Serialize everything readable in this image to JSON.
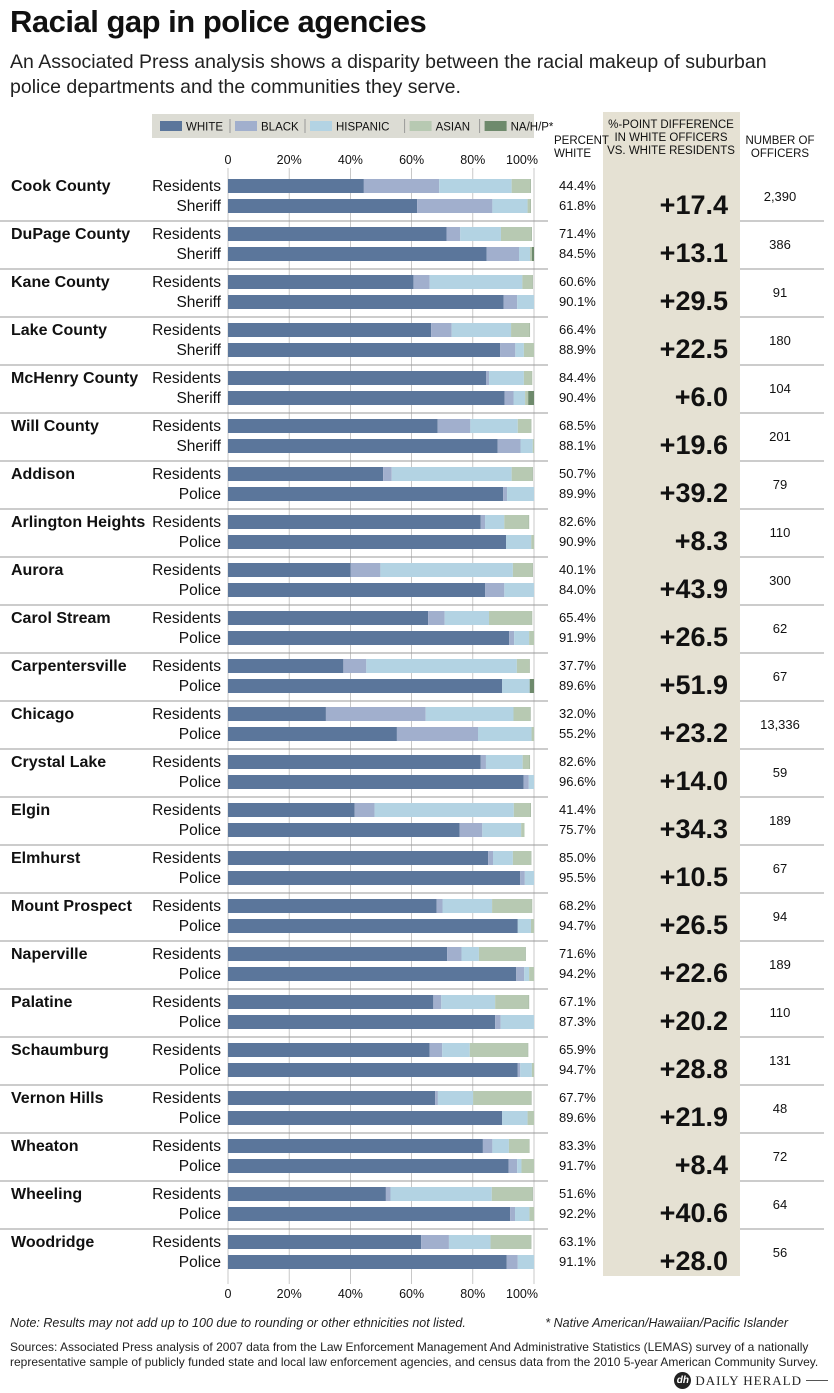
{
  "header": {
    "title": "Racial gap in police agencies",
    "subtitle": "An Associated Press analysis shows a disparity between the racial makeup of suburban police departments and the communities they serve."
  },
  "chart_data": {
    "type": "bar",
    "orientation": "horizontal",
    "stacked": true,
    "xlim": [
      0,
      100
    ],
    "x_ticks": [
      "0",
      "20%",
      "40%",
      "60%",
      "80%",
      "100%"
    ],
    "legend": {
      "placement": "top",
      "entries": [
        {
          "name": "WHITE",
          "color": "#5b769b"
        },
        {
          "name": "BLACK",
          "color": "#a1afcd"
        },
        {
          "name": "HISPANIC",
          "color": "#b3d3e3"
        },
        {
          "name": "ASIAN",
          "color": "#b7c9b2"
        },
        {
          "name": "NA/H/P*",
          "color": "#6e8a6c"
        }
      ]
    },
    "column_headers": {
      "percent_white": [
        "PERCENT",
        "WHITE"
      ],
      "difference": [
        "%-POINT DIFFERENCE",
        "IN WHITE OFFICERS",
        "VS. WHITE RESIDENTS"
      ],
      "officers": [
        "NUMBER OF",
        "OFFICERS"
      ]
    },
    "rows": [
      {
        "name": "Cook County",
        "res_label": "Residents",
        "ag_label": "Sheriff",
        "residents": [
          44.4,
          24.6,
          23.7,
          6.2,
          0.1
        ],
        "agency": [
          61.8,
          24.6,
          11.5,
          1.0,
          0.1
        ],
        "res_pct": "44.4%",
        "ag_pct": "61.8%",
        "diff": "+17.4",
        "officers": "2,390"
      },
      {
        "name": "DuPage County",
        "res_label": "Residents",
        "ag_label": "Sheriff",
        "residents": [
          71.4,
          4.5,
          13.3,
          10.0,
          0.1
        ],
        "agency": [
          84.5,
          10.6,
          3.6,
          0.6,
          0.7
        ],
        "res_pct": "71.4%",
        "ag_pct": "84.5%",
        "diff": "+13.1",
        "officers": "386"
      },
      {
        "name": "Kane County",
        "res_label": "Residents",
        "ag_label": "Sheriff",
        "residents": [
          60.6,
          5.3,
          30.3,
          3.3,
          0.1
        ],
        "agency": [
          90.1,
          4.4,
          5.5,
          0,
          0
        ],
        "res_pct": "60.6%",
        "ag_pct": "90.1%",
        "diff": "+29.5",
        "officers": "91"
      },
      {
        "name": "Lake County",
        "res_label": "Residents",
        "ag_label": "Sheriff",
        "residents": [
          66.4,
          6.7,
          19.4,
          6.1,
          0.1
        ],
        "agency": [
          88.9,
          5.0,
          2.8,
          3.3,
          0
        ],
        "res_pct": "66.4%",
        "ag_pct": "88.9%",
        "diff": "+22.5",
        "officers": "180"
      },
      {
        "name": "McHenry County",
        "res_label": "Residents",
        "ag_label": "Sheriff",
        "residents": [
          84.4,
          0.9,
          11.4,
          2.6,
          0.1
        ],
        "agency": [
          90.4,
          2.9,
          3.8,
          1.0,
          1.9
        ],
        "res_pct": "84.4%",
        "ag_pct": "90.4%",
        "diff": "+6.0",
        "officers": "104"
      },
      {
        "name": "Will County",
        "res_label": "Residents",
        "ag_label": "Sheriff",
        "residents": [
          68.5,
          10.7,
          15.5,
          4.3,
          0.1
        ],
        "agency": [
          88.1,
          7.5,
          4.0,
          0.4,
          0
        ],
        "res_pct": "68.5%",
        "ag_pct": "88.1%",
        "diff": "+19.6",
        "officers": "201"
      },
      {
        "name": "Addison",
        "res_label": "Residents",
        "ag_label": "Police",
        "residents": [
          50.7,
          2.8,
          39.2,
          6.8,
          0.1
        ],
        "agency": [
          89.9,
          1.3,
          8.8,
          0,
          0
        ],
        "res_pct": "50.7%",
        "ag_pct": "89.9%",
        "diff": "+39.2",
        "officers": "79"
      },
      {
        "name": "Arlington Heights",
        "res_label": "Residents",
        "ag_label": "Police",
        "residents": [
          82.6,
          1.4,
          6.3,
          8.0,
          0.1
        ],
        "agency": [
          90.9,
          0,
          8.2,
          0.9,
          0
        ],
        "res_pct": "82.6%",
        "ag_pct": "90.9%",
        "diff": "+8.3",
        "officers": "110"
      },
      {
        "name": "Aurora",
        "res_label": "Residents",
        "ag_label": "Police",
        "residents": [
          40.1,
          9.7,
          43.3,
          6.4,
          0.1
        ],
        "agency": [
          84.0,
          6.3,
          9.7,
          0,
          0
        ],
        "res_pct": "40.1%",
        "ag_pct": "84.0%",
        "diff": "+43.9",
        "officers": "300"
      },
      {
        "name": "Carol Stream",
        "res_label": "Residents",
        "ag_label": "Police",
        "residents": [
          65.4,
          5.4,
          14.5,
          14.0,
          0.1
        ],
        "agency": [
          91.9,
          1.6,
          4.9,
          1.6,
          0
        ],
        "res_pct": "65.4%",
        "ag_pct": "91.9%",
        "diff": "+26.5",
        "officers": "62"
      },
      {
        "name": "Carpentersville",
        "res_label": "Residents",
        "ag_label": "Police",
        "residents": [
          37.7,
          7.5,
          49.2,
          4.1,
          0.1
        ],
        "agency": [
          89.6,
          0,
          9.0,
          0,
          1.4
        ],
        "res_pct": "37.7%",
        "ag_pct": "89.6%",
        "diff": "+51.9",
        "officers": "67"
      },
      {
        "name": "Chicago",
        "res_label": "Residents",
        "ag_label": "Police",
        "residents": [
          32.0,
          32.6,
          28.7,
          5.5,
          0.1
        ],
        "agency": [
          55.2,
          26.5,
          17.5,
          0.8,
          0
        ],
        "res_pct": "32.0%",
        "ag_pct": "55.2%",
        "diff": "+23.2",
        "officers": "13,336"
      },
      {
        "name": "Crystal Lake",
        "res_label": "Residents",
        "ag_label": "Police",
        "residents": [
          82.6,
          1.7,
          12.0,
          2.3,
          0.1
        ],
        "agency": [
          96.6,
          1.7,
          1.7,
          0,
          0
        ],
        "res_pct": "82.6%",
        "ag_pct": "96.6%",
        "diff": "+14.0",
        "officers": "59"
      },
      {
        "name": "Elgin",
        "res_label": "Residents",
        "ag_label": "Police",
        "residents": [
          41.4,
          6.5,
          45.5,
          5.5,
          0.1
        ],
        "agency": [
          75.7,
          7.4,
          12.7,
          1.1,
          0
        ],
        "res_pct": "41.4%",
        "ag_pct": "75.7%",
        "diff": "+34.3",
        "officers": "189"
      },
      {
        "name": "Elmhurst",
        "res_label": "Residents",
        "ag_label": "Police",
        "residents": [
          85.0,
          1.6,
          6.5,
          5.9,
          0.1
        ],
        "agency": [
          95.5,
          1.5,
          3.0,
          0,
          0
        ],
        "res_pct": "85.0%",
        "ag_pct": "95.5%",
        "diff": "+10.5",
        "officers": "67"
      },
      {
        "name": "Mount Prospect",
        "res_label": "Residents",
        "ag_label": "Police",
        "residents": [
          68.2,
          1.9,
          16.2,
          13.0,
          0.1
        ],
        "agency": [
          94.7,
          0,
          4.3,
          1.0,
          0
        ],
        "res_pct": "68.2%",
        "ag_pct": "94.7%",
        "diff": "+26.5",
        "officers": "94"
      },
      {
        "name": "Naperville",
        "res_label": "Residents",
        "ag_label": "Police",
        "residents": [
          71.6,
          4.7,
          5.7,
          15.2,
          0.1
        ],
        "agency": [
          94.2,
          2.6,
          1.6,
          1.6,
          0
        ],
        "res_pct": "71.6%",
        "ag_pct": "94.2%",
        "diff": "+22.6",
        "officers": "189"
      },
      {
        "name": "Palatine",
        "res_label": "Residents",
        "ag_label": "Police",
        "residents": [
          67.1,
          2.6,
          17.6,
          11.0,
          0.1
        ],
        "agency": [
          87.3,
          1.8,
          10.9,
          0,
          0
        ],
        "res_pct": "67.1%",
        "ag_pct": "87.3%",
        "diff": "+20.2",
        "officers": "110"
      },
      {
        "name": "Schaumburg",
        "res_label": "Residents",
        "ag_label": "Police",
        "residents": [
          65.9,
          4.1,
          9.0,
          19.0,
          0.1
        ],
        "agency": [
          94.7,
          0.8,
          3.8,
          0.7,
          0
        ],
        "res_pct": "65.9%",
        "ag_pct": "94.7%",
        "diff": "+28.8",
        "officers": "131"
      },
      {
        "name": "Vernon Hills",
        "res_label": "Residents",
        "ag_label": "Police",
        "residents": [
          67.7,
          0.9,
          11.5,
          19.0,
          0.1
        ],
        "agency": [
          89.6,
          0,
          8.3,
          2.1,
          0
        ],
        "res_pct": "67.7%",
        "ag_pct": "89.6%",
        "diff": "+21.9",
        "officers": "48"
      },
      {
        "name": "Wheaton",
        "res_label": "Residents",
        "ag_label": "Police",
        "residents": [
          83.3,
          3.1,
          5.4,
          6.6,
          0.1
        ],
        "agency": [
          91.7,
          2.8,
          1.4,
          4.1,
          0
        ],
        "res_pct": "83.3%",
        "ag_pct": "91.7%",
        "diff": "+8.4",
        "officers": "72"
      },
      {
        "name": "Wheeling",
        "res_label": "Residents",
        "ag_label": "Police",
        "residents": [
          51.6,
          1.5,
          33.1,
          13.3,
          0.1
        ],
        "agency": [
          92.2,
          1.6,
          4.7,
          1.5,
          0
        ],
        "res_pct": "51.6%",
        "ag_pct": "92.2%",
        "diff": "+40.6",
        "officers": "64"
      },
      {
        "name": "Woodridge",
        "res_label": "Residents",
        "ag_label": "Police",
        "residents": [
          63.1,
          9.1,
          13.6,
          13.2,
          0.1
        ],
        "agency": [
          91.1,
          3.6,
          5.3,
          0,
          0
        ],
        "res_pct": "63.1%",
        "ag_pct": "91.1%",
        "diff": "+28.0",
        "officers": "56"
      }
    ]
  },
  "footer": {
    "note": "Note: Results may not add up to 100 due to rounding or other ethnicities not listed.",
    "footnote": "* Native American/Hawaiian/Pacific Islander",
    "sources": "Sources: Associated Press analysis of 2007 data from the Law Enforcement Management And Administrative Statistics (LEMAS) survey of a nationally representative sample of publicly funded state and local law enforcement agencies, and census data from the 2010 5-year American Community Survey.",
    "brand_mark": "dh",
    "brand_name": "DAILY HERALD"
  }
}
